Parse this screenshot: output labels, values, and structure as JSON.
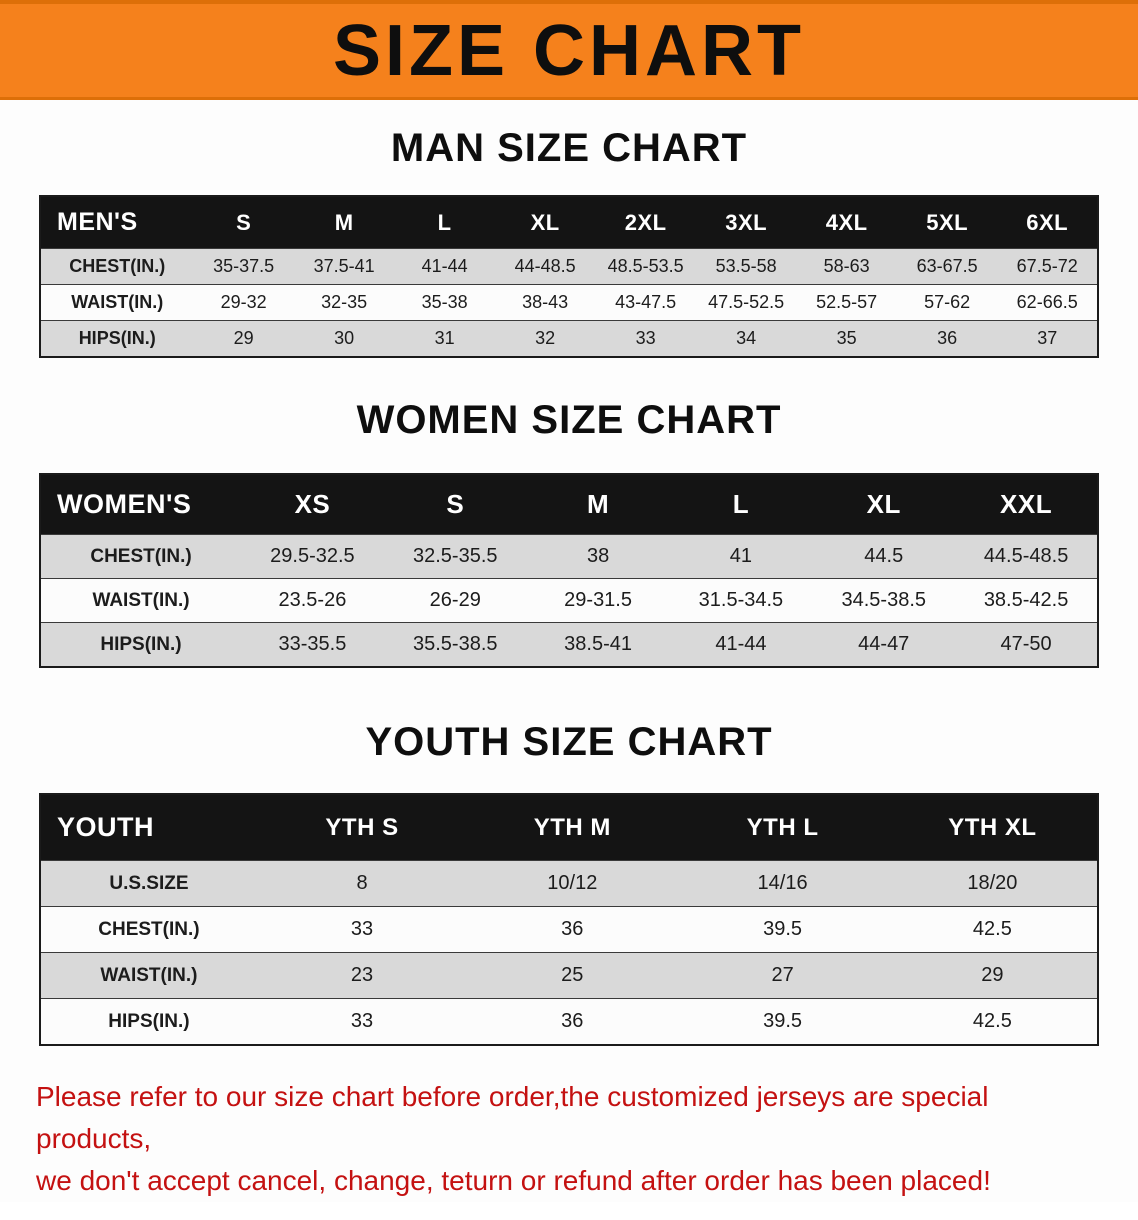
{
  "banner": {
    "title": "SIZE CHART"
  },
  "sections": [
    {
      "heading": "MAN SIZE CHART",
      "table": {
        "header": [
          "MEN'S",
          "S",
          "M",
          "L",
          "XL",
          "2XL",
          "3XL",
          "4XL",
          "5XL",
          "6XL"
        ],
        "rows": [
          [
            "CHEST(IN.)",
            "35-37.5",
            "37.5-41",
            "41-44",
            "44-48.5",
            "48.5-53.5",
            "53.5-58",
            "58-63",
            "63-67.5",
            "67.5-72"
          ],
          [
            "WAIST(IN.)",
            "29-32",
            "32-35",
            "35-38",
            "38-43",
            "43-47.5",
            "47.5-52.5",
            "52.5-57",
            "57-62",
            "62-66.5"
          ],
          [
            "HIPS(IN.)",
            "29",
            "30",
            "31",
            "32",
            "33",
            "34",
            "35",
            "36",
            "37"
          ]
        ]
      }
    },
    {
      "heading": "WOMEN SIZE CHART",
      "table": {
        "header": [
          "WOMEN'S",
          "XS",
          "S",
          "M",
          "L",
          "XL",
          "XXL"
        ],
        "rows": [
          [
            "CHEST(IN.)",
            "29.5-32.5",
            "32.5-35.5",
            "38",
            "41",
            "44.5",
            "44.5-48.5"
          ],
          [
            "WAIST(IN.)",
            "23.5-26",
            "26-29",
            "29-31.5",
            "31.5-34.5",
            "34.5-38.5",
            "38.5-42.5"
          ],
          [
            "HIPS(IN.)",
            "33-35.5",
            "35.5-38.5",
            "38.5-41",
            "41-44",
            "44-47",
            "47-50"
          ]
        ]
      }
    },
    {
      "heading": "YOUTH SIZE CHART",
      "table": {
        "header": [
          "YOUTH",
          "YTH S",
          "YTH M",
          "YTH L",
          "YTH XL"
        ],
        "rows": [
          [
            "U.S.SIZE",
            "8",
            "10/12",
            "14/16",
            "18/20"
          ],
          [
            "CHEST(IN.)",
            "33",
            "36",
            "39.5",
            "42.5"
          ],
          [
            "WAIST(IN.)",
            "23",
            "25",
            "27",
            "29"
          ],
          [
            "HIPS(IN.)",
            "33",
            "36",
            "39.5",
            "42.5"
          ]
        ]
      }
    }
  ],
  "footer": {
    "line1": "Please refer to our size chart before order,the customized jerseys are special products,",
    "line2": "we don't accept cancel, change, teturn or refund after order has been placed!"
  },
  "colors": {
    "banner_bg": "#f5811c",
    "table_header_bg": "#141414",
    "row_stripe_gray": "#d9d9d9",
    "note_red": "#c41111"
  }
}
